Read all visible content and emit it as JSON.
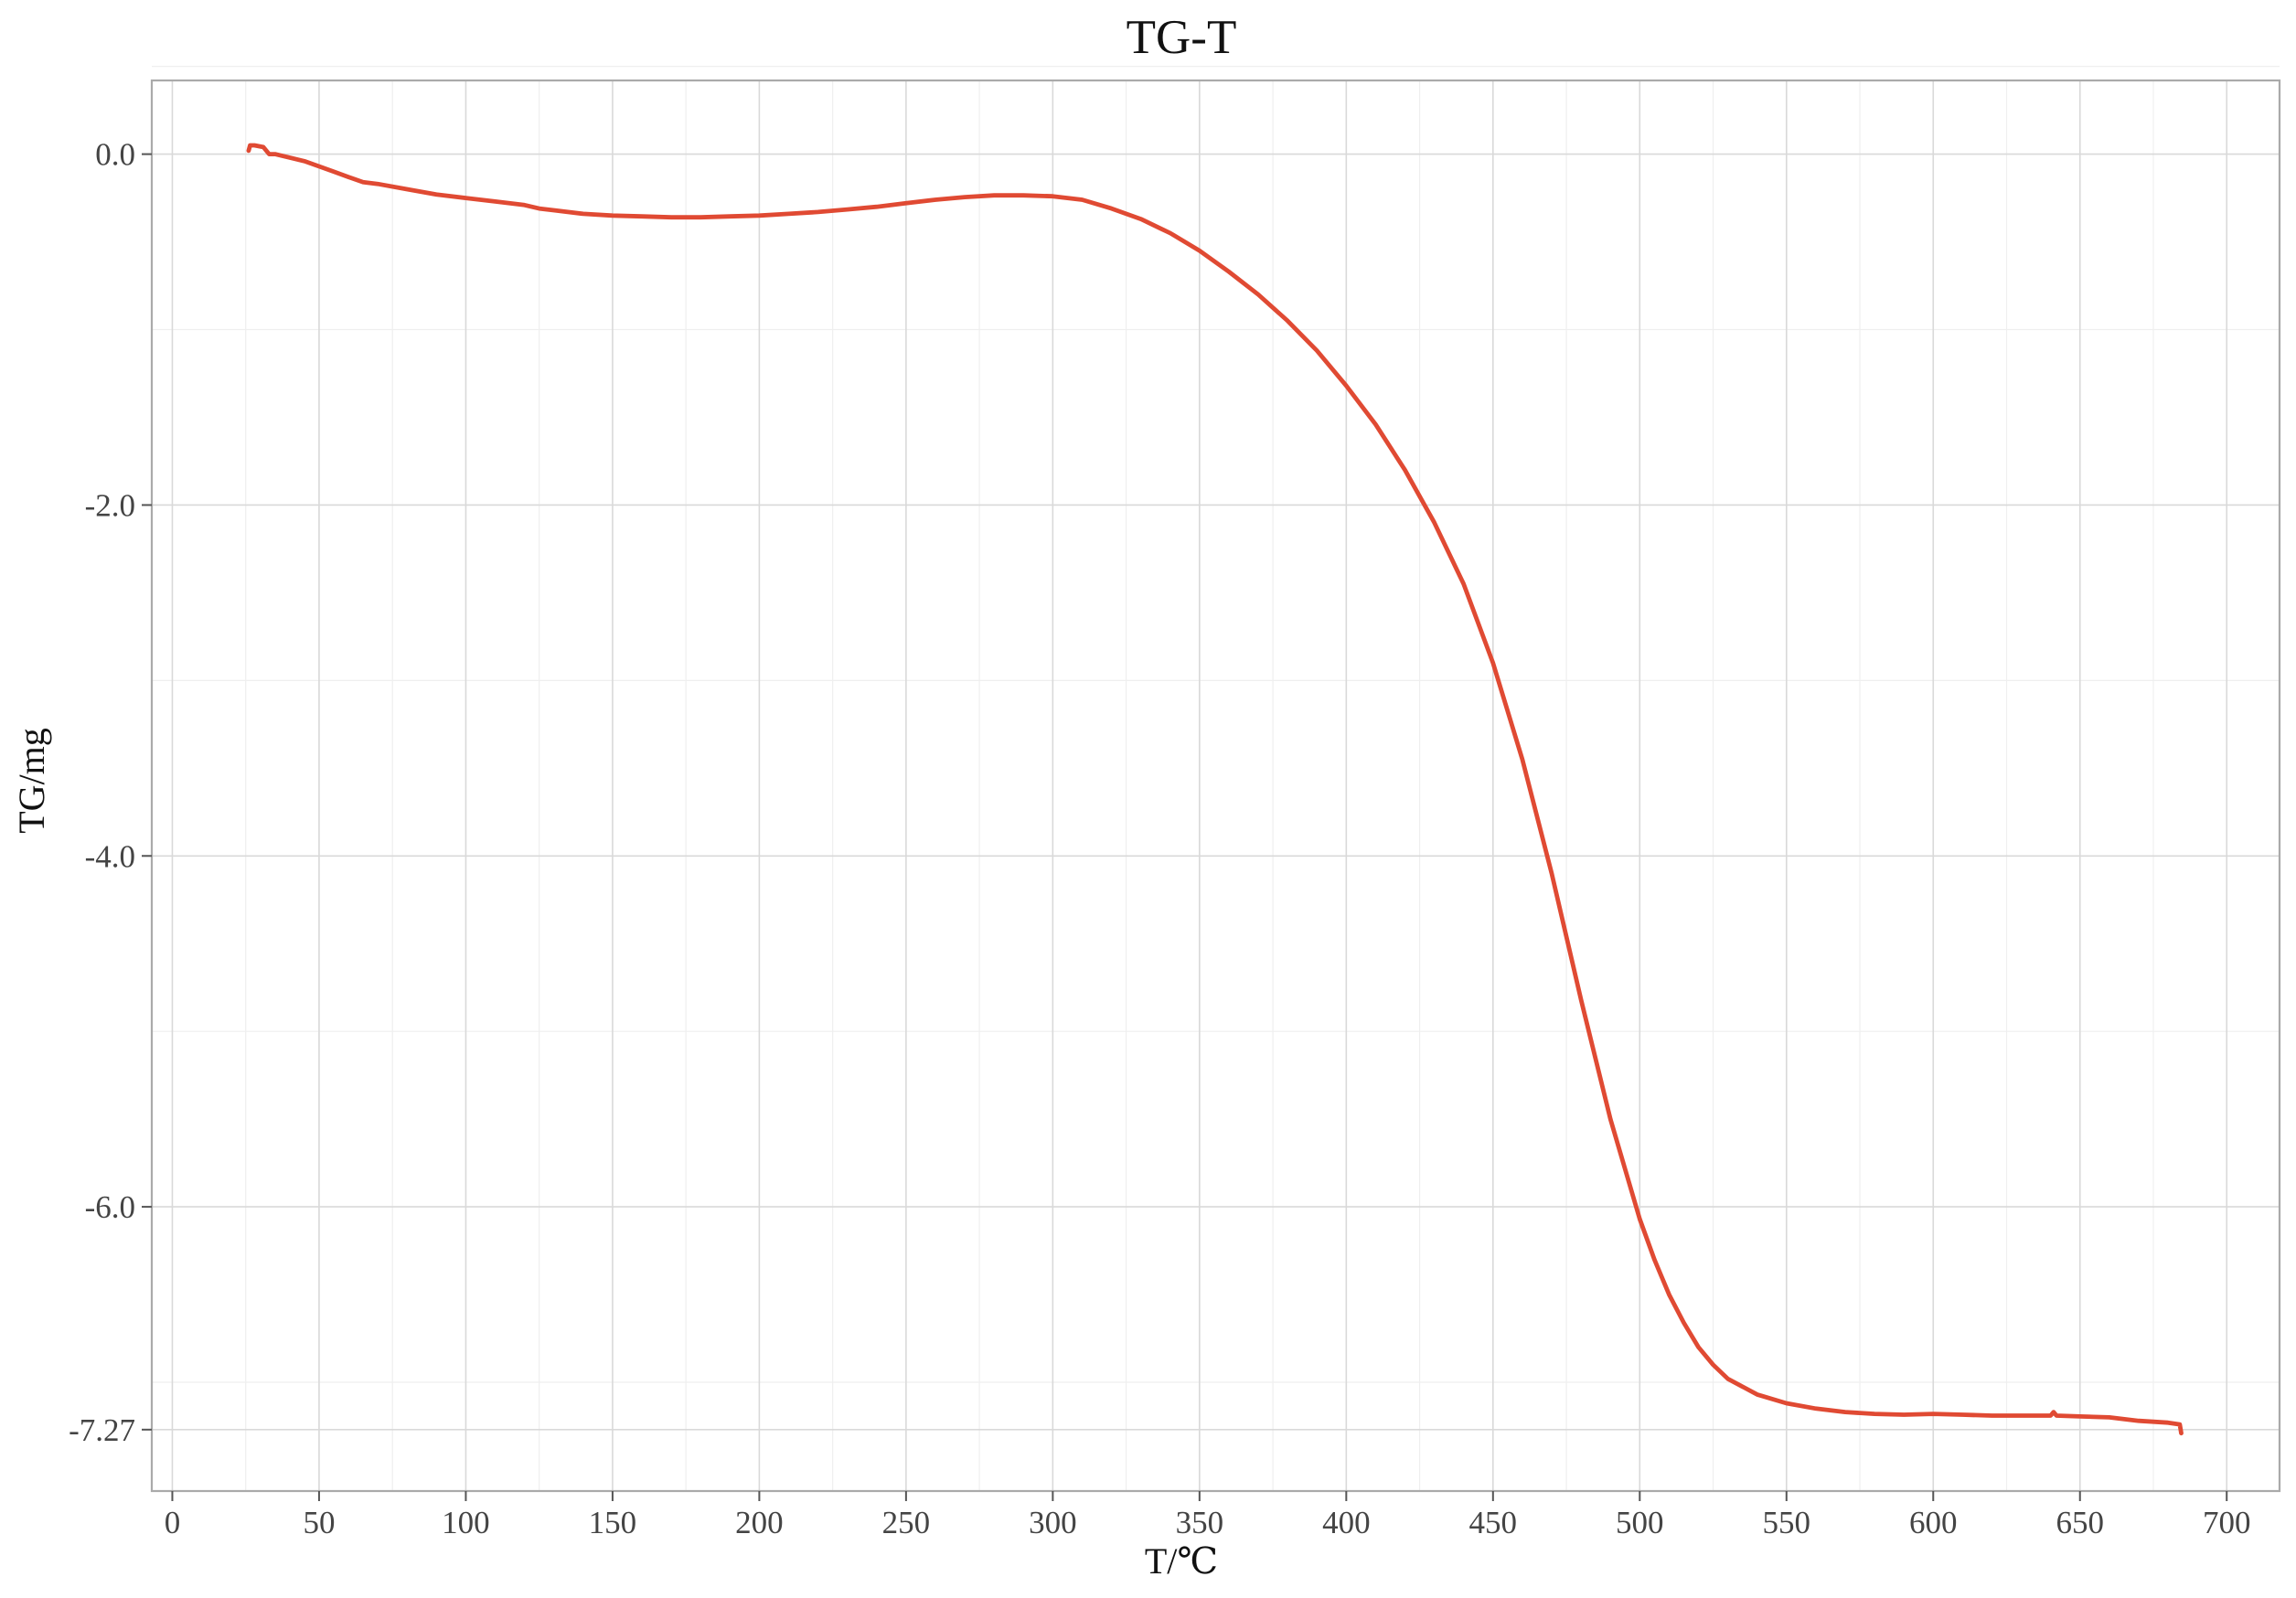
{
  "chart_data": {
    "type": "line",
    "title": "TG-T",
    "xlabel": "T/℃",
    "ylabel": "TG/mg",
    "xlim": [
      -7,
      718
    ],
    "ylim": [
      -7.62,
      0.42
    ],
    "x_ticks": [
      0,
      50,
      100,
      150,
      200,
      250,
      300,
      350,
      400,
      450,
      500,
      550,
      600,
      650,
      700
    ],
    "x_tick_labels": [
      "0",
      "50",
      "100",
      "150",
      "200",
      "250",
      "300",
      "350",
      "400",
      "450",
      "500",
      "550",
      "600",
      "650",
      "700"
    ],
    "y_ticks": [
      0,
      -2,
      -4,
      -6,
      -7.27
    ],
    "y_tick_labels": [
      "0.0",
      "-2.0",
      "-4.0",
      "-6.0",
      "-7.27"
    ],
    "grid": true,
    "series": [
      {
        "color": "#e04a33",
        "points": [
          [
            26,
            0.02
          ],
          [
            26.5,
            0.05
          ],
          [
            28,
            0.05
          ],
          [
            31,
            0.04
          ],
          [
            33,
            0.0
          ],
          [
            35,
            0.0
          ],
          [
            40,
            -0.02
          ],
          [
            45,
            -0.04
          ],
          [
            50,
            -0.07
          ],
          [
            55,
            -0.1
          ],
          [
            60,
            -0.13
          ],
          [
            65,
            -0.16
          ],
          [
            70,
            -0.17
          ],
          [
            80,
            -0.2
          ],
          [
            90,
            -0.23
          ],
          [
            100,
            -0.25
          ],
          [
            110,
            -0.27
          ],
          [
            120,
            -0.29
          ],
          [
            125,
            -0.31
          ],
          [
            130,
            -0.32
          ],
          [
            140,
            -0.34
          ],
          [
            150,
            -0.35
          ],
          [
            160,
            -0.355
          ],
          [
            170,
            -0.36
          ],
          [
            180,
            -0.36
          ],
          [
            190,
            -0.355
          ],
          [
            200,
            -0.35
          ],
          [
            210,
            -0.34
          ],
          [
            220,
            -0.33
          ],
          [
            230,
            -0.315
          ],
          [
            240,
            -0.3
          ],
          [
            250,
            -0.28
          ],
          [
            260,
            -0.26
          ],
          [
            270,
            -0.245
          ],
          [
            280,
            -0.235
          ],
          [
            290,
            -0.235
          ],
          [
            300,
            -0.24
          ],
          [
            310,
            -0.26
          ],
          [
            320,
            -0.31
          ],
          [
            330,
            -0.37
          ],
          [
            340,
            -0.45
          ],
          [
            350,
            -0.55
          ],
          [
            360,
            -0.67
          ],
          [
            370,
            -0.8
          ],
          [
            380,
            -0.95
          ],
          [
            390,
            -1.12
          ],
          [
            400,
            -1.32
          ],
          [
            410,
            -1.54
          ],
          [
            420,
            -1.8
          ],
          [
            430,
            -2.1
          ],
          [
            440,
            -2.45
          ],
          [
            450,
            -2.9
          ],
          [
            460,
            -3.45
          ],
          [
            470,
            -4.1
          ],
          [
            480,
            -4.82
          ],
          [
            490,
            -5.5
          ],
          [
            500,
            -6.07
          ],
          [
            505,
            -6.3
          ],
          [
            510,
            -6.5
          ],
          [
            515,
            -6.66
          ],
          [
            520,
            -6.8
          ],
          [
            525,
            -6.9
          ],
          [
            530,
            -6.98
          ],
          [
            540,
            -7.07
          ],
          [
            550,
            -7.12
          ],
          [
            560,
            -7.15
          ],
          [
            570,
            -7.17
          ],
          [
            580,
            -7.18
          ],
          [
            590,
            -7.185
          ],
          [
            600,
            -7.18
          ],
          [
            610,
            -7.185
          ],
          [
            620,
            -7.19
          ],
          [
            630,
            -7.19
          ],
          [
            640,
            -7.19
          ],
          [
            641,
            -7.17
          ],
          [
            642,
            -7.19
          ],
          [
            650,
            -7.195
          ],
          [
            660,
            -7.2
          ],
          [
            670,
            -7.22
          ],
          [
            680,
            -7.23
          ],
          [
            684,
            -7.24
          ],
          [
            684.5,
            -7.29
          ]
        ]
      }
    ]
  }
}
